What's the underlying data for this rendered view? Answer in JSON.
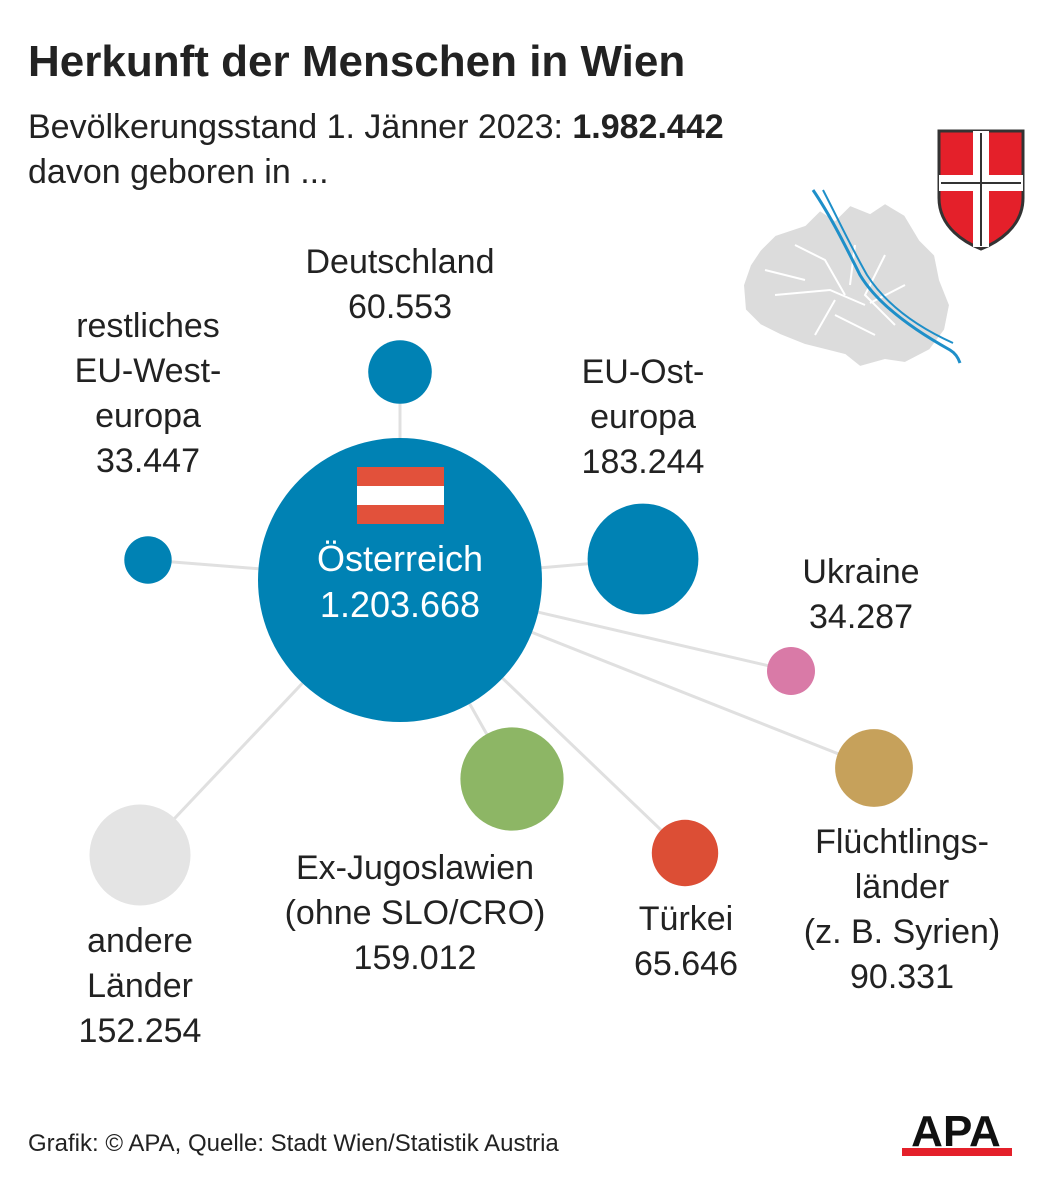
{
  "title": "Herkunft der Menschen in Wien",
  "subtitle": {
    "prefix": "Bevölkerungsstand 1. Jänner 2023: ",
    "total": "1.982.442",
    "line2": "davon geboren in ..."
  },
  "source": "Grafik: © APA, Quelle: Stadt Wien/Statistik Austria",
  "logo": "APA",
  "colors": {
    "blue": "#0082b4",
    "pink": "#d97aa7",
    "green": "#8db665",
    "red": "#dc4e35",
    "gold": "#c6a15b",
    "grey": "#e4e4e4",
    "line": "#e0e0e0",
    "austria_red": "#e2513b"
  },
  "icons": [
    "austria-flag-icon",
    "vienna-coat-of-arms-icon",
    "vienna-map-icon",
    "apa-logo-icon"
  ],
  "chart_data": {
    "type": "bubble",
    "title": "Herkunft der Menschen in Wien",
    "center": {
      "name": "Österreich",
      "value": 1203668,
      "value_label": "1.203.668",
      "color": "#0082b4"
    },
    "nodes": [
      {
        "key": "deutschland",
        "label_lines": [
          "Deutschland",
          "60.553"
        ],
        "value": 60553,
        "color": "#0082b4"
      },
      {
        "key": "eu-west",
        "label_lines": [
          "restliches",
          "EU-West-",
          "europa",
          "33.447"
        ],
        "value": 33447,
        "color": "#0082b4"
      },
      {
        "key": "eu-ost",
        "label_lines": [
          "EU-Ost-",
          "europa",
          "183.244"
        ],
        "value": 183244,
        "color": "#0082b4"
      },
      {
        "key": "ukraine",
        "label_lines": [
          "Ukraine",
          "34.287"
        ],
        "value": 34287,
        "color": "#d97aa7"
      },
      {
        "key": "fluechtlingslaender",
        "label_lines": [
          "Flüchtlings-",
          "länder",
          "(z. B. Syrien)",
          "90.331"
        ],
        "value": 90331,
        "color": "#c6a15b"
      },
      {
        "key": "tuerkei",
        "label_lines": [
          "Türkei",
          "65.646"
        ],
        "value": 65646,
        "color": "#dc4e35"
      },
      {
        "key": "ex-jugoslawien",
        "label_lines": [
          "Ex-Jugoslawien",
          "(ohne SLO/CRO)",
          "159.012"
        ],
        "value": 159012,
        "color": "#8db665"
      },
      {
        "key": "andere",
        "label_lines": [
          "andere",
          "Länder",
          "152.254"
        ],
        "value": 152254,
        "color": "#e4e4e4"
      }
    ]
  }
}
